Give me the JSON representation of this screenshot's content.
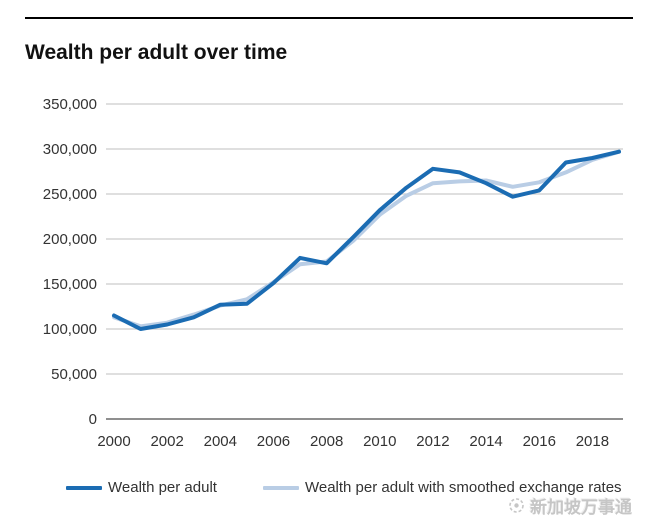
{
  "title": "Wealth per adult over time",
  "watermark": {
    "text": "新加坡万事通"
  },
  "colors": {
    "series_dark": "#1b6cb3",
    "series_light": "#b9cde5",
    "gridline": "#cccccc",
    "zero_axis": "#8f8f8f",
    "title": "#111111",
    "tick_text": "#333333",
    "top_rule": "#000000",
    "watermark_text": "#c6c6c6"
  },
  "chart_data": {
    "type": "line",
    "title": "Wealth per adult over time",
    "xlabel": "",
    "ylabel": "",
    "x": [
      2000,
      2001,
      2002,
      2003,
      2004,
      2005,
      2006,
      2007,
      2008,
      2009,
      2010,
      2011,
      2012,
      2013,
      2014,
      2015,
      2016,
      2017,
      2018,
      2019
    ],
    "series": [
      {
        "name": "Wealth per adult",
        "color": "#1b6cb3",
        "values": [
          115000,
          100000,
          105000,
          113000,
          127000,
          128000,
          151000,
          179000,
          173000,
          202000,
          232000,
          257000,
          278000,
          274000,
          262000,
          247000,
          254000,
          285000,
          290000,
          297000
        ]
      },
      {
        "name": "Wealth per adult with smoothed exchange rates",
        "color": "#b9cde5",
        "values": [
          113000,
          103000,
          107000,
          116000,
          126000,
          133000,
          152000,
          172000,
          175000,
          198000,
          227000,
          248000,
          262000,
          264000,
          265000,
          258000,
          263000,
          274000,
          288000,
          297000
        ]
      }
    ],
    "xticks": [
      2000,
      2002,
      2004,
      2006,
      2008,
      2010,
      2012,
      2014,
      2016,
      2018
    ],
    "ylim": [
      0,
      350000
    ],
    "ytick_step": 50000,
    "grid": "horizontal",
    "legend_position": "bottom"
  }
}
